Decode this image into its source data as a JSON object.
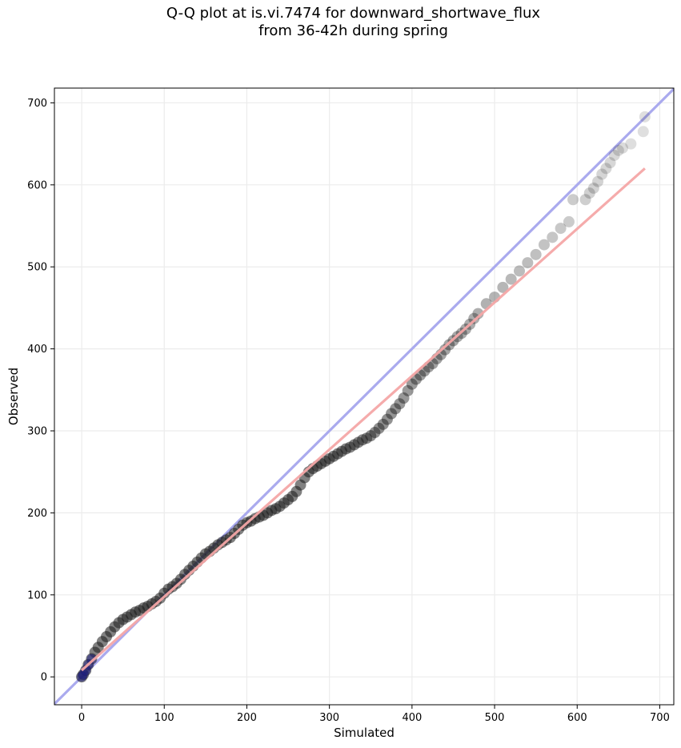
{
  "chart_data": {
    "type": "scatter",
    "title": "Q-Q plot at is.vi.7474 for downward_shortwave_flux",
    "subtitle": "from 36-42h during spring",
    "xlabel": "Simulated",
    "ylabel": "Observed",
    "xlim": [
      -33,
      717
    ],
    "ylim": [
      -34,
      718
    ],
    "xticks": [
      0,
      100,
      200,
      300,
      400,
      500,
      600,
      700
    ],
    "yticks": [
      0,
      100,
      200,
      300,
      400,
      500,
      600,
      700
    ],
    "grid": true,
    "identity_line": {
      "from": [
        -33,
        -33
      ],
      "to": [
        717,
        717
      ],
      "color": "#aaaaee"
    },
    "fit_line": {
      "from": [
        0,
        8
      ],
      "to": [
        682,
        620
      ],
      "color": "#f4a6a6"
    },
    "quantile_points": {
      "x": [
        0,
        2,
        5,
        8,
        12,
        16,
        20,
        25,
        30,
        35,
        40,
        45,
        50,
        55,
        60,
        65,
        70,
        75,
        80,
        85,
        90,
        95,
        100,
        105,
        110,
        115,
        120,
        125,
        130,
        135,
        140,
        145,
        150,
        155,
        160,
        165,
        170,
        175,
        180,
        185,
        190,
        195,
        200,
        205,
        210,
        215,
        220,
        225,
        230,
        235,
        240,
        245,
        250,
        255,
        260,
        265,
        270,
        275,
        280,
        285,
        290,
        295,
        300,
        305,
        310,
        315,
        320,
        325,
        330,
        335,
        340,
        345,
        350,
        355,
        360,
        365,
        370,
        375,
        380,
        385,
        390,
        395,
        400,
        405,
        410,
        415,
        420,
        425,
        430,
        435,
        440,
        445,
        450,
        455,
        460,
        465,
        470,
        475,
        480,
        490,
        500,
        510,
        520,
        530,
        540,
        550,
        560,
        570,
        580,
        590,
        595,
        610,
        615,
        620,
        625,
        630,
        635,
        640,
        645,
        650,
        655,
        665,
        680,
        682
      ],
      "y": [
        0,
        3,
        8,
        15,
        22,
        30,
        36,
        43,
        49,
        55,
        61,
        66,
        70,
        73,
        76,
        79,
        81,
        84,
        86,
        89,
        92,
        96,
        102,
        107,
        110,
        114,
        119,
        125,
        130,
        135,
        140,
        145,
        150,
        153,
        157,
        161,
        164,
        167,
        170,
        175,
        180,
        185,
        188,
        190,
        193,
        195,
        197,
        200,
        203,
        205,
        208,
        212,
        216,
        220,
        226,
        234,
        243,
        250,
        254,
        257,
        260,
        263,
        266,
        269,
        272,
        275,
        278,
        280,
        283,
        286,
        289,
        291,
        294,
        298,
        303,
        308,
        314,
        321,
        327,
        333,
        340,
        349,
        357,
        363,
        368,
        373,
        378,
        382,
        388,
        393,
        399,
        405,
        410,
        415,
        419,
        424,
        430,
        437,
        443,
        455,
        463,
        475,
        485,
        495,
        505,
        515,
        527,
        536,
        547,
        555,
        582,
        582,
        590,
        596,
        604,
        613,
        620,
        627,
        636,
        642,
        645,
        650,
        665,
        683
      ]
    }
  }
}
